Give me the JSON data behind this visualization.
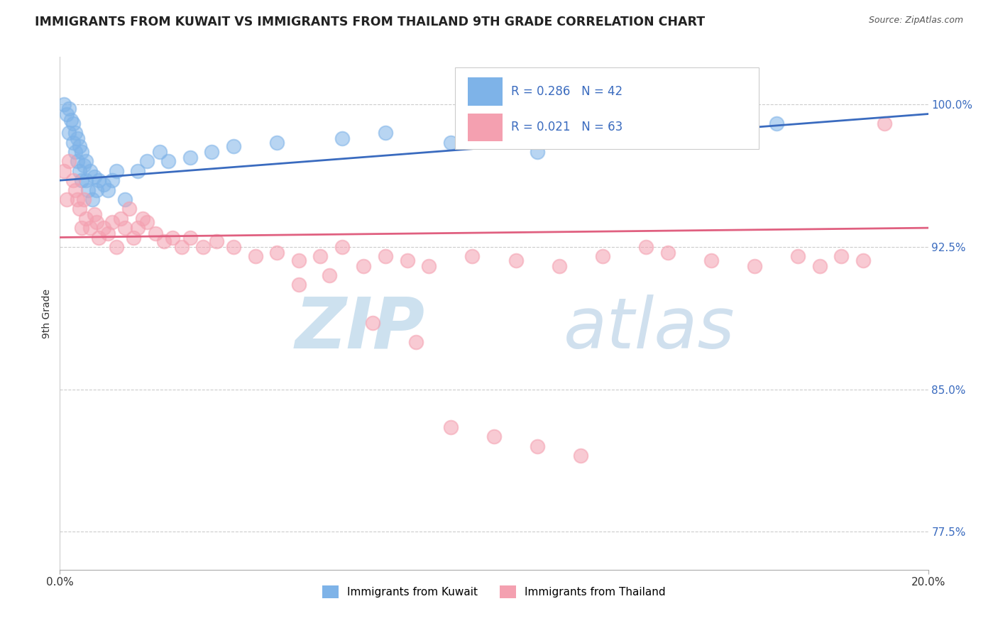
{
  "title": "IMMIGRANTS FROM KUWAIT VS IMMIGRANTS FROM THAILAND 9TH GRADE CORRELATION CHART",
  "source": "Source: ZipAtlas.com",
  "ylabel": "9th Grade",
  "xlim": [
    0.0,
    20.0
  ],
  "ylim": [
    75.5,
    102.5
  ],
  "yticks": [
    77.5,
    85.0,
    92.5,
    100.0
  ],
  "ytick_labels": [
    "77.5%",
    "85.0%",
    "92.5%",
    "100.0%"
  ],
  "kuwait_label": "Immigrants from Kuwait",
  "thailand_label": "Immigrants from Thailand",
  "kuwait_R": "0.286",
  "kuwait_N": "42",
  "thailand_R": "0.021",
  "thailand_N": "63",
  "kuwait_color": "#7eb3e8",
  "thailand_color": "#f4a0b0",
  "kuwait_line_color": "#3a6bbf",
  "thailand_line_color": "#e06080",
  "kuwait_points_x": [
    0.1,
    0.15,
    0.2,
    0.2,
    0.25,
    0.3,
    0.3,
    0.35,
    0.35,
    0.4,
    0.4,
    0.45,
    0.45,
    0.5,
    0.5,
    0.55,
    0.6,
    0.6,
    0.65,
    0.7,
    0.75,
    0.8,
    0.85,
    0.9,
    1.0,
    1.1,
    1.2,
    1.3,
    1.5,
    1.8,
    2.0,
    2.3,
    2.5,
    3.0,
    3.5,
    4.0,
    5.0,
    6.5,
    7.5,
    9.0,
    11.0,
    16.5
  ],
  "kuwait_points_y": [
    100.0,
    99.5,
    99.8,
    98.5,
    99.2,
    98.0,
    99.0,
    97.5,
    98.5,
    97.0,
    98.2,
    97.8,
    96.5,
    96.0,
    97.5,
    96.8,
    96.0,
    97.0,
    95.5,
    96.5,
    95.0,
    96.2,
    95.5,
    96.0,
    95.8,
    95.5,
    96.0,
    96.5,
    95.0,
    96.5,
    97.0,
    97.5,
    97.0,
    97.2,
    97.5,
    97.8,
    98.0,
    98.2,
    98.5,
    98.0,
    97.5,
    99.0
  ],
  "thailand_points_x": [
    0.1,
    0.15,
    0.2,
    0.3,
    0.35,
    0.4,
    0.45,
    0.5,
    0.55,
    0.6,
    0.7,
    0.8,
    0.85,
    0.9,
    1.0,
    1.1,
    1.2,
    1.3,
    1.4,
    1.5,
    1.6,
    1.7,
    1.8,
    1.9,
    2.0,
    2.2,
    2.4,
    2.6,
    2.8,
    3.0,
    3.3,
    3.6,
    4.0,
    4.5,
    5.0,
    5.5,
    6.0,
    6.5,
    7.0,
    7.5,
    8.0,
    8.5,
    9.5,
    10.5,
    11.5,
    12.5,
    13.5,
    14.0,
    15.0,
    16.0,
    17.0,
    17.5,
    18.0,
    18.5,
    5.5,
    6.2,
    7.2,
    8.2,
    9.0,
    10.0,
    11.0,
    12.0,
    19.0
  ],
  "thailand_points_y": [
    96.5,
    95.0,
    97.0,
    96.0,
    95.5,
    95.0,
    94.5,
    93.5,
    95.0,
    94.0,
    93.5,
    94.2,
    93.8,
    93.0,
    93.5,
    93.2,
    93.8,
    92.5,
    94.0,
    93.5,
    94.5,
    93.0,
    93.5,
    94.0,
    93.8,
    93.2,
    92.8,
    93.0,
    92.5,
    93.0,
    92.5,
    92.8,
    92.5,
    92.0,
    92.2,
    91.8,
    92.0,
    92.5,
    91.5,
    92.0,
    91.8,
    91.5,
    92.0,
    91.8,
    91.5,
    92.0,
    92.5,
    92.2,
    91.8,
    91.5,
    92.0,
    91.5,
    92.0,
    91.8,
    90.5,
    91.0,
    88.5,
    87.5,
    83.0,
    82.5,
    82.0,
    81.5,
    99.0
  ],
  "kuwait_trend_x": [
    0.0,
    20.0
  ],
  "kuwait_trend_y": [
    96.0,
    99.5
  ],
  "thailand_trend_x": [
    0.0,
    20.0
  ],
  "thailand_trend_y": [
    93.0,
    93.5
  ],
  "background_color": "#ffffff",
  "watermark_zip": "ZIP",
  "watermark_atlas": "atlas",
  "watermark_color_zip": "#c8dff0",
  "watermark_color_atlas": "#c0d8e8"
}
